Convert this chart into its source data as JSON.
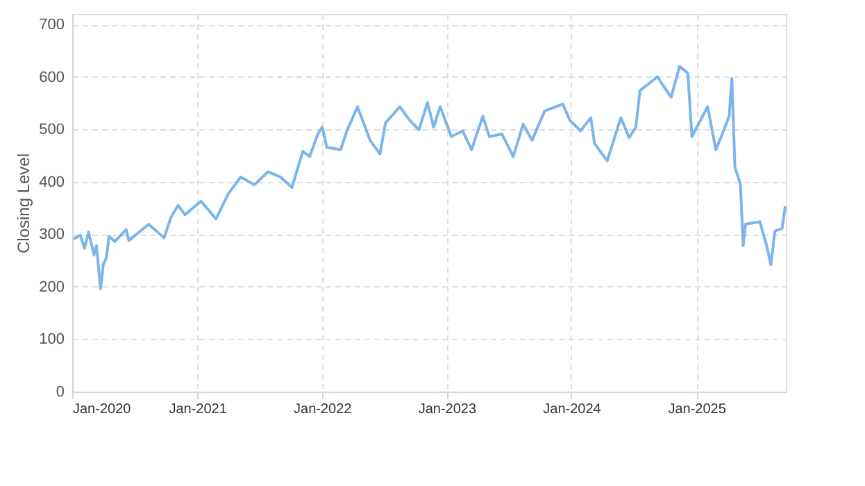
{
  "chart_data": {
    "type": "line",
    "ylabel": "Closing Level",
    "grid": true,
    "legend": false,
    "marker": "none",
    "line_style": "solid",
    "xlim": [
      "2020-01-01",
      "2025-09-20"
    ],
    "ylim": [
      0,
      720
    ],
    "xticks": [
      {
        "value": "2020-01-01",
        "label": "Jan-2020"
      },
      {
        "value": "2021-01-01",
        "label": "Jan-2021"
      },
      {
        "value": "2022-01-01",
        "label": "Jan-2022"
      },
      {
        "value": "2023-01-01",
        "label": "Jan-2023"
      },
      {
        "value": "2024-01-01",
        "label": "Jan-2024"
      },
      {
        "value": "2025-01-01",
        "label": "Jan-2025"
      }
    ],
    "yticks": [
      0,
      100,
      200,
      300,
      400,
      500,
      600,
      700
    ],
    "x": [
      "2020-01-05",
      "2020-01-25",
      "2020-02-06",
      "2020-02-18",
      "2020-03-05",
      "2020-03-12",
      "2020-03-24",
      "2020-04-01",
      "2020-04-10",
      "2020-04-18",
      "2020-05-05",
      "2020-06-07",
      "2020-06-15",
      "2020-08-12",
      "2020-09-26",
      "2020-10-16",
      "2020-11-06",
      "2020-11-26",
      "2021-01-12",
      "2021-02-25",
      "2021-04-01",
      "2021-05-08",
      "2021-06-17",
      "2021-07-27",
      "2021-09-02",
      "2021-10-05",
      "2021-11-06",
      "2021-11-26",
      "2021-12-20",
      "2022-01-02",
      "2022-01-15",
      "2022-02-25",
      "2022-03-15",
      "2022-04-15",
      "2022-05-22",
      "2022-06-20",
      "2022-07-06",
      "2022-08-17",
      "2022-09-15",
      "2022-10-12",
      "2022-11-06",
      "2022-11-24",
      "2022-12-13",
      "2023-01-15",
      "2023-02-17",
      "2023-03-15",
      "2023-04-17",
      "2023-05-06",
      "2023-06-12",
      "2023-07-15",
      "2023-08-13",
      "2023-09-08",
      "2023-10-15",
      "2023-12-07",
      "2023-12-28",
      "2024-01-28",
      "2024-02-27",
      "2024-03-09",
      "2024-04-15",
      "2024-05-25",
      "2024-06-18",
      "2024-07-08",
      "2024-07-20",
      "2024-09-09",
      "2024-10-19",
      "2024-11-13",
      "2024-12-07",
      "2024-12-19",
      "2025-02-03",
      "2025-02-27",
      "2025-03-18",
      "2025-04-07",
      "2025-04-15",
      "2025-04-24",
      "2025-05-10",
      "2025-05-18",
      "2025-05-25",
      "2025-07-06",
      "2025-07-25",
      "2025-08-07",
      "2025-08-19",
      "2025-09-09",
      "2025-09-18"
    ],
    "series": [
      {
        "color": "#7cb5ec",
        "values": [
          291,
          298,
          273,
          304,
          260,
          278,
          196,
          242,
          255,
          296,
          286,
          309,
          288,
          319,
          293,
          332,
          355,
          337,
          363,
          329,
          376,
          409,
          394,
          419,
          409,
          389,
          458,
          448,
          491,
          504,
          466,
          461,
          497,
          543,
          479,
          453,
          512,
          543,
          517,
          499,
          551,
          504,
          543,
          486,
          497,
          461,
          525,
          486,
          491,
          448,
          510,
          479,
          535,
          548,
          517,
          497,
          522,
          473,
          440,
          522,
          484,
          504,
          574,
          600,
          561,
          620,
          607,
          486,
          543,
          461,
          491,
          525,
          597,
          427,
          396,
          278,
          319,
          324,
          280,
          242,
          306,
          311,
          353
        ]
      }
    ]
  }
}
